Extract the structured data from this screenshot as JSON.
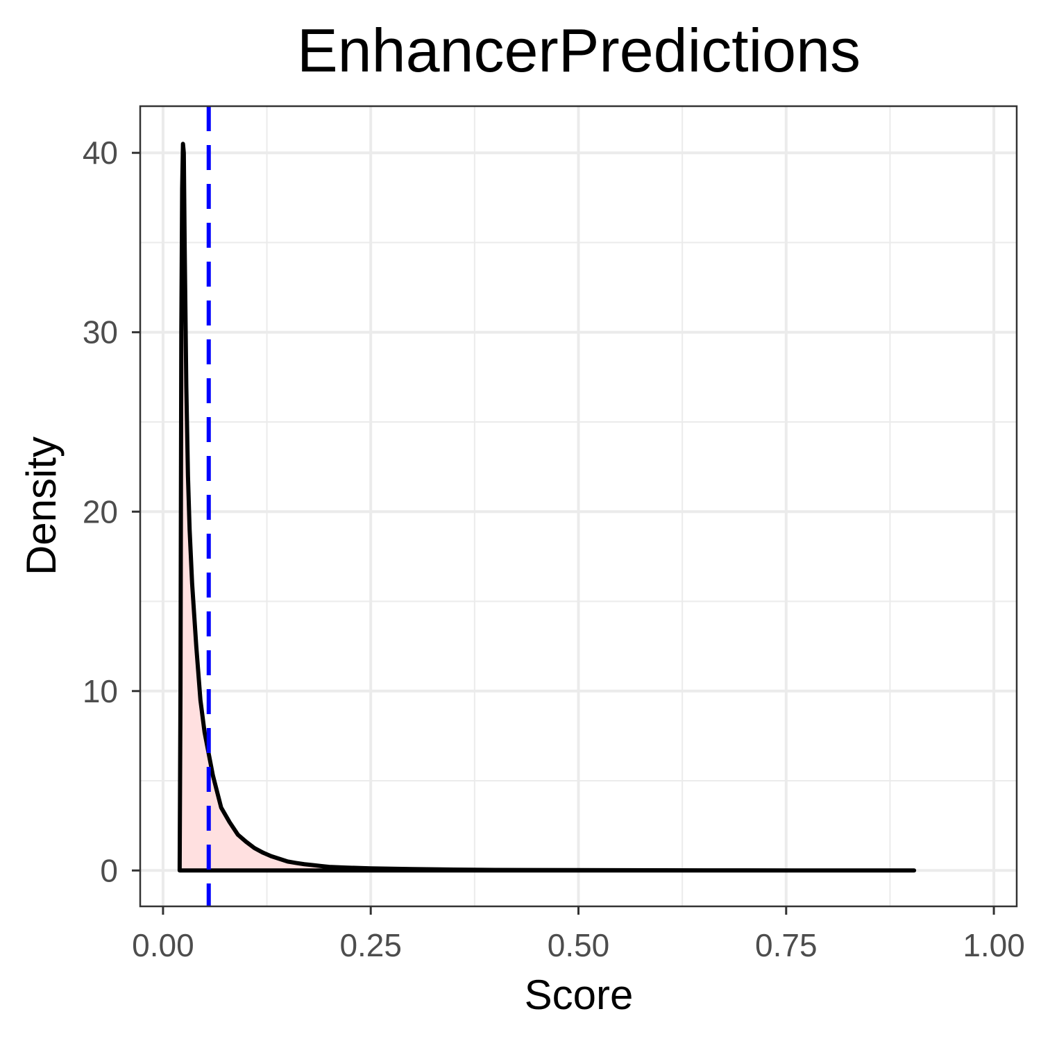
{
  "chart_data": {
    "type": "area",
    "title": "EnhancerPredictions",
    "xlabel": "Score",
    "ylabel": "Density",
    "xlim": [
      -0.0275,
      1.0275
    ],
    "ylim": [
      -2.0,
      42.6
    ],
    "x_ticks": [
      0.0,
      0.25,
      0.5,
      0.75,
      1.0
    ],
    "x_tick_labels": [
      "0.00",
      "0.25",
      "0.50",
      "0.75",
      "1.00"
    ],
    "y_ticks": [
      0,
      10,
      20,
      30,
      40
    ],
    "y_tick_labels": [
      "0",
      "10",
      "20",
      "30",
      "40"
    ],
    "grid": true,
    "legend": "none",
    "series": [
      {
        "x": [
          0.02,
          0.021,
          0.022,
          0.023,
          0.024,
          0.025,
          0.026,
          0.028,
          0.03,
          0.032,
          0.035,
          0.04,
          0.045,
          0.05,
          0.06,
          0.07,
          0.08,
          0.09,
          0.1,
          0.11,
          0.12,
          0.13,
          0.14,
          0.15,
          0.16,
          0.17,
          0.18,
          0.19,
          0.2,
          0.22,
          0.25,
          0.3,
          0.35,
          0.4,
          0.5,
          0.6,
          0.7,
          0.8,
          0.9,
          0.904
        ],
        "y": [
          0.0,
          10.0,
          30.0,
          38.0,
          40.5,
          40.0,
          35.0,
          27.0,
          22.0,
          19.0,
          16.0,
          12.5,
          9.5,
          7.7,
          5.3,
          3.5,
          2.7,
          2.0,
          1.6,
          1.25,
          1.0,
          0.8,
          0.65,
          0.5,
          0.42,
          0.35,
          0.3,
          0.25,
          0.2,
          0.16,
          0.12,
          0.08,
          0.05,
          0.03,
          0.02,
          0.01,
          0.005,
          0.003,
          0.0,
          0.0
        ],
        "fill_color": "#ffe0e0",
        "line_color": "#000000"
      }
    ],
    "annotations": [
      {
        "type": "vline",
        "x": 0.055,
        "style": "dashed",
        "color": "#0000ff"
      }
    ]
  }
}
